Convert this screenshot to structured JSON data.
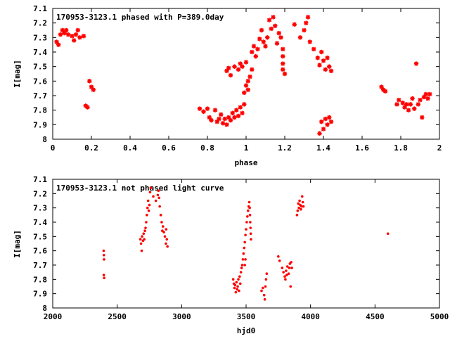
{
  "colors": {
    "points": "#ff0000",
    "axes": "#000000",
    "background": "#ffffff"
  },
  "chart_data": [
    {
      "type": "scatter",
      "title": "170953-3123.1 phased with P=389.0day",
      "xlabel": "phase",
      "ylabel": "I[mag]",
      "xlim": [
        0,
        2
      ],
      "ylim": [
        8,
        7.1
      ],
      "y_inverted": true,
      "xticks": [
        "0",
        "0.2",
        "0.4",
        "0.6",
        "0.8",
        "1",
        "1.2",
        "1.4",
        "1.6",
        "1.8",
        "2"
      ],
      "yticks": [
        "7.1",
        "7.2",
        "7.3",
        "7.4",
        "7.5",
        "7.6",
        "7.7",
        "7.8",
        "7.9",
        "8"
      ],
      "grid": false,
      "legend": "none",
      "marker": "star",
      "series": [
        {
          "points": [
            [
              0.02,
              7.33
            ],
            [
              0.03,
              7.35
            ],
            [
              0.04,
              7.28
            ],
            [
              0.05,
              7.25
            ],
            [
              0.06,
              7.27
            ],
            [
              0.07,
              7.25
            ],
            [
              0.08,
              7.28
            ],
            [
              0.1,
              7.29
            ],
            [
              0.11,
              7.32
            ],
            [
              0.12,
              7.28
            ],
            [
              0.13,
              7.25
            ],
            [
              0.14,
              7.3
            ],
            [
              0.16,
              7.29
            ],
            [
              0.17,
              7.77
            ],
            [
              0.18,
              7.78
            ],
            [
              0.19,
              7.6
            ],
            [
              0.2,
              7.64
            ],
            [
              0.21,
              7.66
            ],
            [
              0.76,
              7.79
            ],
            [
              0.78,
              7.81
            ],
            [
              0.8,
              7.79
            ],
            [
              0.81,
              7.85
            ],
            [
              0.82,
              7.87
            ],
            [
              0.84,
              7.8
            ],
            [
              0.85,
              7.88
            ],
            [
              0.86,
              7.86
            ],
            [
              0.87,
              7.83
            ],
            [
              0.88,
              7.89
            ],
            [
              0.89,
              7.86
            ],
            [
              0.9,
              7.9
            ],
            [
              0.91,
              7.85
            ],
            [
              0.92,
              7.87
            ],
            [
              0.93,
              7.82
            ],
            [
              0.94,
              7.85
            ],
            [
              0.95,
              7.8
            ],
            [
              0.96,
              7.84
            ],
            [
              0.97,
              7.78
            ],
            [
              0.98,
              7.82
            ],
            [
              0.99,
              7.76
            ],
            [
              0.9,
              7.53
            ],
            [
              0.91,
              7.51
            ],
            [
              0.92,
              7.56
            ],
            [
              0.94,
              7.5
            ],
            [
              0.96,
              7.52
            ],
            [
              0.97,
              7.48
            ],
            [
              0.98,
              7.5
            ],
            [
              1.0,
              7.47
            ],
            [
              1.01,
              7.6
            ],
            [
              1.0,
              7.63
            ],
            [
              0.99,
              7.68
            ],
            [
              1.01,
              7.66
            ],
            [
              1.02,
              7.57
            ],
            [
              1.03,
              7.52
            ],
            [
              1.03,
              7.4
            ],
            [
              1.04,
              7.36
            ],
            [
              1.05,
              7.43
            ],
            [
              1.06,
              7.38
            ],
            [
              1.07,
              7.31
            ],
            [
              1.08,
              7.25
            ],
            [
              1.09,
              7.33
            ],
            [
              1.1,
              7.36
            ],
            [
              1.11,
              7.3
            ],
            [
              1.12,
              7.18
            ],
            [
              1.13,
              7.24
            ],
            [
              1.14,
              7.16
            ],
            [
              1.15,
              7.22
            ],
            [
              1.16,
              7.34
            ],
            [
              1.17,
              7.27
            ],
            [
              1.18,
              7.3
            ],
            [
              1.19,
              7.38
            ],
            [
              1.19,
              7.43
            ],
            [
              1.19,
              7.48
            ],
            [
              1.19,
              7.52
            ],
            [
              1.2,
              7.55
            ],
            [
              1.25,
              7.21
            ],
            [
              1.28,
              7.3
            ],
            [
              1.3,
              7.25
            ],
            [
              1.31,
              7.2
            ],
            [
              1.32,
              7.16
            ],
            [
              1.33,
              7.33
            ],
            [
              1.35,
              7.38
            ],
            [
              1.37,
              7.44
            ],
            [
              1.38,
              7.49
            ],
            [
              1.39,
              7.4
            ],
            [
              1.4,
              7.46
            ],
            [
              1.41,
              7.52
            ],
            [
              1.42,
              7.44
            ],
            [
              1.43,
              7.5
            ],
            [
              1.44,
              7.53
            ],
            [
              1.38,
              7.96
            ],
            [
              1.39,
              7.88
            ],
            [
              1.4,
              7.93
            ],
            [
              1.41,
              7.86
            ],
            [
              1.42,
              7.9
            ],
            [
              1.43,
              7.85
            ],
            [
              1.44,
              7.88
            ],
            [
              1.7,
              7.64
            ],
            [
              1.71,
              7.66
            ],
            [
              1.72,
              7.67
            ],
            [
              1.78,
              7.76
            ],
            [
              1.79,
              7.73
            ],
            [
              1.81,
              7.75
            ],
            [
              1.82,
              7.78
            ],
            [
              1.83,
              7.76
            ],
            [
              1.84,
              7.8
            ],
            [
              1.85,
              7.76
            ],
            [
              1.86,
              7.72
            ],
            [
              1.87,
              7.79
            ],
            [
              1.88,
              7.48
            ],
            [
              1.89,
              7.76
            ],
            [
              1.9,
              7.73
            ],
            [
              1.91,
              7.85
            ],
            [
              1.92,
              7.71
            ],
            [
              1.93,
              7.69
            ],
            [
              1.94,
              7.72
            ],
            [
              1.95,
              7.69
            ]
          ]
        }
      ]
    },
    {
      "type": "scatter",
      "title": "170953-3123.1 not phased light curve",
      "xlabel": "hjd0",
      "ylabel": "I[mag]",
      "xlim": [
        2000,
        5000
      ],
      "ylim": [
        8,
        7.1
      ],
      "y_inverted": true,
      "xticks": [
        "2000",
        "2500",
        "3000",
        "3500",
        "4000",
        "4500",
        "5000"
      ],
      "yticks": [
        "7.1",
        "7.2",
        "7.3",
        "7.4",
        "7.5",
        "7.6",
        "7.7",
        "7.8",
        "7.9",
        "8"
      ],
      "grid": false,
      "legend": "none",
      "marker": "dot",
      "series": [
        {
          "points": [
            [
              2395,
              7.6
            ],
            [
              2397,
              7.63
            ],
            [
              2398,
              7.66
            ],
            [
              2396,
              7.77
            ],
            [
              2399,
              7.79
            ],
            [
              2680,
              7.52
            ],
            [
              2685,
              7.55
            ],
            [
              2690,
              7.6
            ],
            [
              2693,
              7.5
            ],
            [
              2700,
              7.53
            ],
            [
              2705,
              7.48
            ],
            [
              2710,
              7.52
            ],
            [
              2715,
              7.46
            ],
            [
              2720,
              7.44
            ],
            [
              2725,
              7.4
            ],
            [
              2730,
              7.35
            ],
            [
              2735,
              7.3
            ],
            [
              2740,
              7.25
            ],
            [
              2745,
              7.32
            ],
            [
              2750,
              7.28
            ],
            [
              2755,
              7.19
            ],
            [
              2760,
              7.16
            ],
            [
              2780,
              7.22
            ],
            [
              2800,
              7.25
            ],
            [
              2815,
              7.21
            ],
            [
              2820,
              7.18
            ],
            [
              2825,
              7.23
            ],
            [
              2830,
              7.29
            ],
            [
              2838,
              7.35
            ],
            [
              2845,
              7.4
            ],
            [
              2850,
              7.46
            ],
            [
              2855,
              7.43
            ],
            [
              2862,
              7.47
            ],
            [
              2870,
              7.5
            ],
            [
              2878,
              7.55
            ],
            [
              2885,
              7.52
            ],
            [
              2890,
              7.57
            ],
            [
              2880,
              7.45
            ],
            [
              3400,
              7.8
            ],
            [
              3405,
              7.83
            ],
            [
              3410,
              7.86
            ],
            [
              3415,
              7.84
            ],
            [
              3420,
              7.89
            ],
            [
              3425,
              7.82
            ],
            [
              3430,
              7.87
            ],
            [
              3435,
              7.85
            ],
            [
              3440,
              7.8
            ],
            [
              3445,
              7.88
            ],
            [
              3450,
              7.78
            ],
            [
              3455,
              7.83
            ],
            [
              3460,
              7.75
            ],
            [
              3465,
              7.72
            ],
            [
              3470,
              7.7
            ],
            [
              3475,
              7.66
            ],
            [
              3480,
              7.62
            ],
            [
              3485,
              7.58
            ],
            [
              3490,
              7.54
            ],
            [
              3495,
              7.49
            ],
            [
              3500,
              7.45
            ],
            [
              3505,
              7.4
            ],
            [
              3510,
              7.36
            ],
            [
              3515,
              7.32
            ],
            [
              3520,
              7.29
            ],
            [
              3525,
              7.26
            ],
            [
              3528,
              7.3
            ],
            [
              3530,
              7.35
            ],
            [
              3532,
              7.4
            ],
            [
              3534,
              7.44
            ],
            [
              3536,
              7.48
            ],
            [
              3538,
              7.52
            ],
            [
              3490,
              7.7
            ],
            [
              3495,
              7.66
            ],
            [
              3620,
              7.88
            ],
            [
              3630,
              7.86
            ],
            [
              3640,
              7.91
            ],
            [
              3645,
              7.94
            ],
            [
              3650,
              7.85
            ],
            [
              3655,
              7.8
            ],
            [
              3660,
              7.76
            ],
            [
              3750,
              7.64
            ],
            [
              3760,
              7.67
            ],
            [
              3780,
              7.72
            ],
            [
              3790,
              7.75
            ],
            [
              3800,
              7.78
            ],
            [
              3805,
              7.8
            ],
            [
              3810,
              7.74
            ],
            [
              3815,
              7.77
            ],
            [
              3820,
              7.71
            ],
            [
              3830,
              7.76
            ],
            [
              3835,
              7.72
            ],
            [
              3840,
              7.69
            ],
            [
              3845,
              7.85
            ],
            [
              3850,
              7.68
            ],
            [
              3855,
              7.72
            ],
            [
              3895,
              7.35
            ],
            [
              3900,
              7.32
            ],
            [
              3905,
              7.27
            ],
            [
              3910,
              7.3
            ],
            [
              3915,
              7.25
            ],
            [
              3920,
              7.28
            ],
            [
              3925,
              7.31
            ],
            [
              3930,
              7.29
            ],
            [
              3935,
              7.22
            ],
            [
              3940,
              7.26
            ],
            [
              3945,
              7.29
            ],
            [
              4600,
              7.48
            ]
          ]
        }
      ]
    }
  ]
}
